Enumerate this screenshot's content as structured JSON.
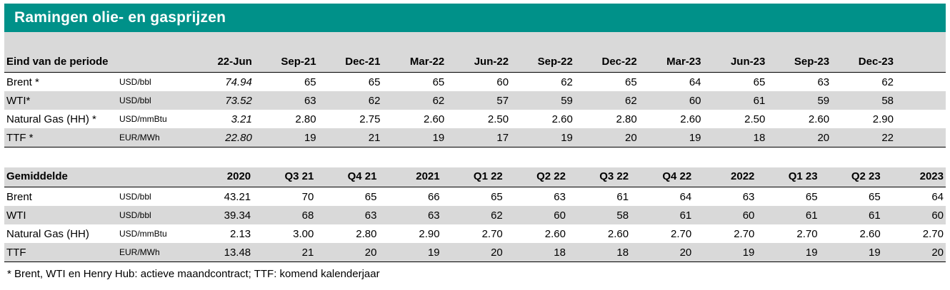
{
  "title": "Ramingen olie- en gasprijzen",
  "colors": {
    "accent_teal": "#009189",
    "band_gray": "#D9D9D9",
    "line_black": "#000000"
  },
  "tables": {
    "end_of_period": {
      "header_label": "Eind van de periode",
      "columns": [
        "22-Jun",
        "Sep-21",
        "Dec-21",
        "Mar-22",
        "Jun-22",
        "Sep-22",
        "Dec-22",
        "Mar-23",
        "Jun-23",
        "Sep-23",
        "Dec-23"
      ],
      "italic_first_value": true,
      "rows": [
        {
          "label": "Brent *",
          "unit": "USD/bbl",
          "values": [
            "74.94",
            "65",
            "65",
            "65",
            "60",
            "62",
            "65",
            "64",
            "65",
            "63",
            "62"
          ]
        },
        {
          "label": "WTI*",
          "unit": "USD/bbl",
          "values": [
            "73.52",
            "63",
            "62",
            "62",
            "57",
            "59",
            "62",
            "60",
            "61",
            "59",
            "58"
          ]
        },
        {
          "label": "Natural Gas (HH) *",
          "unit": "USD/mmBtu",
          "values": [
            "3.21",
            "2.80",
            "2.75",
            "2.60",
            "2.50",
            "2.60",
            "2.80",
            "2.60",
            "2.50",
            "2.60",
            "2.90"
          ]
        },
        {
          "label": "TTF *",
          "unit": "EUR/MWh",
          "values": [
            "22.80",
            "19",
            "21",
            "19",
            "17",
            "19",
            "20",
            "19",
            "18",
            "20",
            "22"
          ]
        }
      ]
    },
    "average": {
      "header_label": "Gemiddelde",
      "columns": [
        "2020",
        "Q3 21",
        "Q4 21",
        "2021",
        "Q1 22",
        "Q2 22",
        "Q3 22",
        "Q4 22",
        "2022",
        "Q1 23",
        "Q2 23",
        "2023"
      ],
      "italic_first_value": false,
      "rows": [
        {
          "label": "Brent",
          "unit": "USD/bbl",
          "values": [
            "43.21",
            "70",
            "65",
            "66",
            "65",
            "63",
            "61",
            "64",
            "63",
            "65",
            "65",
            "64"
          ]
        },
        {
          "label": "WTI",
          "unit": "USD/bbl",
          "values": [
            "39.34",
            "68",
            "63",
            "63",
            "62",
            "60",
            "58",
            "61",
            "60",
            "61",
            "61",
            "60"
          ]
        },
        {
          "label": "Natural Gas (HH)",
          "unit": "USD/mmBtu",
          "values": [
            "2.13",
            "3.00",
            "2.80",
            "2.90",
            "2.70",
            "2.60",
            "2.60",
            "2.70",
            "2.70",
            "2.70",
            "2.60",
            "2.70"
          ]
        },
        {
          "label": "TTF",
          "unit": "EUR/MWh",
          "values": [
            "13.48",
            "21",
            "20",
            "19",
            "20",
            "18",
            "18",
            "20",
            "19",
            "19",
            "19",
            "20"
          ]
        }
      ]
    }
  },
  "footnote": "* Brent, WTI en Henry Hub: actieve maandcontract; TTF: komend kalenderjaar"
}
